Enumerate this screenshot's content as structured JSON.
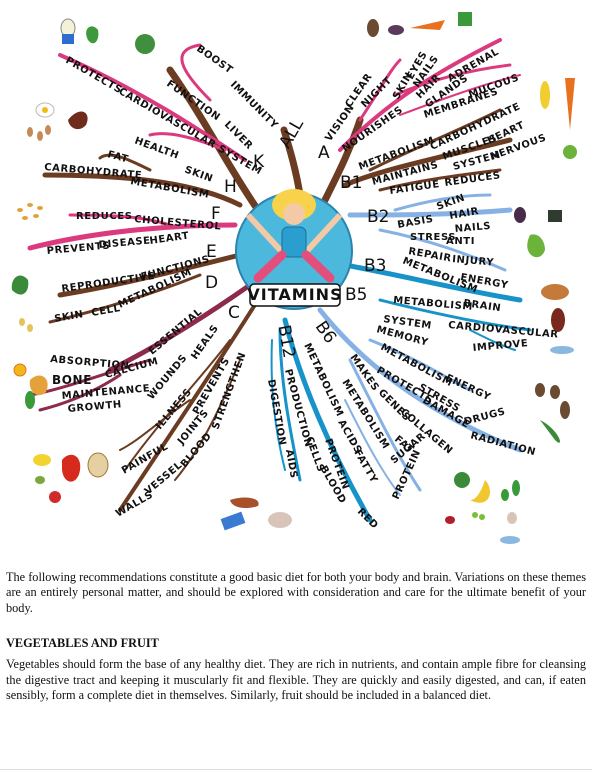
{
  "mindmap": {
    "center": "VITAMINS",
    "vitamins": {
      "a": "A",
      "b1": "B1",
      "b2": "B2",
      "b3": "B3",
      "b5": "B5",
      "b6": "B6",
      "b12": "B12",
      "c": "C",
      "d": "D",
      "e": "E",
      "f": "F",
      "h": "H",
      "k": "K",
      "all": "ALL"
    },
    "words": {
      "boost": "BOOST",
      "immunity": "IMMUNITY",
      "function": "FUNCTION",
      "liver": "LIVER",
      "protects": "PROTECTS",
      "cardiovascular_system": "CARDIOVASCULAR SYSTEM",
      "health": "HEALTH",
      "skin_k": "SKIN",
      "fat": "FAT",
      "carbohydrate_h": "CARBOHYDRATE",
      "metabolism_h": "METABOLISM",
      "vision": "VISION",
      "clear": "CLEAR",
      "night": "NIGHT",
      "nourishes": "NOURISHES",
      "skin_a": "SKIN",
      "eyes": "EYES",
      "nails_a": "NAILS",
      "hair_a": "HAIR",
      "glands": "GLANDS",
      "adrenal": "ADRENAL",
      "membranes": "MEMBRANES",
      "mucous": "MUCOUS",
      "metabolism_b1": "METABOLISM",
      "carbohydrate_b1": "CARBOHYDRATE",
      "maintains": "MAINTAINS",
      "muscles": "MUSCLES",
      "heart_b1": "HEART",
      "system_b1": "SYSTEM",
      "nervous": "NERVOUS",
      "fatigue": "FATIGUE",
      "reduces_b1": "REDUCES",
      "basis": "BASIS",
      "skin_b2": "SKIN",
      "hair_b2": "HAIR",
      "nails_b2": "NAILS",
      "stress_b2": "STRESS",
      "anti": "ANTI",
      "repair": "REPAIR",
      "injury": "INJURY",
      "metabolism_b2": "METABOLISM",
      "energy_b2": "ENERGY",
      "metabolism_b5": "METABOLISM",
      "brain": "BRAIN",
      "system_b5": "SYSTEM",
      "cardiovascular_b5": "CARDIOVASCULAR",
      "improve": "IMPROVE",
      "memory": "MEMORY",
      "metabolism_b6": "METABOLISM",
      "energy_b6": "ENERGY",
      "protects_b6": "PROTECTS",
      "stress_b6": "STRESS",
      "damage": "DAMAGE",
      "drugs": "DRUGS",
      "radiation": "RADIATION",
      "makes": "MAKES",
      "genes": "GENES",
      "collagen": "COLLAGEN",
      "metabolism_fat": "METABOLISM",
      "fat_b6": "FAT",
      "sugar": "SUGAR",
      "protein_b6": "PROTEIN",
      "metabolism_b12": "METABOLISM",
      "acids": "ACIDS",
      "fatty": "FATTY",
      "protein_b12": "PROTEIN",
      "production": "PRODUCTION",
      "cells": "CELLS",
      "blood_b12": "BLOOD",
      "red": "RED",
      "digestion": "DIGESTION",
      "aids": "AIDS",
      "reduces_f": "REDUCES",
      "cholesterol": "CHOLESTEROL",
      "prevents_f": "PREVENTS",
      "disease": "DISEASE",
      "heart_f": "HEART",
      "reproductive": "REPRODUCTIVE",
      "functions": "FUNCTIONS",
      "skin_e": "SKIN",
      "cell": "CELL",
      "metabolism_e": "METABOLISM",
      "absorption": "ABSORPTION",
      "calcium": "CALCIUM",
      "essential": "ESSENTIAL",
      "bone": "BONE",
      "maintenance": "MAINTENANCE",
      "growth": "GROWTH",
      "heals": "HEALS",
      "wounds": "WOUNDS",
      "illness": "ILLNESS",
      "prevents_c": "PREVENTS",
      "joints": "JOINTS",
      "strengthen": "STRENGTHEN",
      "painful": "PAINFUL",
      "walls": "WALLS",
      "vessel": "VESSEL",
      "blood_c": "BLOOD"
    }
  },
  "text": {
    "intro": "The following recommendations constitute a good basic diet for both your body and brain. Variations on these themes are an entirely personal matter, and should be explored with consideration and care for the ultimate benefit of your body.",
    "heading": "VEGETABLES AND FRUIT",
    "body": "Vegetables should form the base of any healthy diet. They are rich in nutrients, and contain ample fibre for cleansing the digestive tract and keeping it muscularly fit and flexible. They are quickly and easily digested, and can, if eaten sensibly, form a complete diet in themselves. Similarly, fruit should be included in a balanced diet."
  },
  "colors": {
    "brown": "#6b3b22",
    "pink": "#dc3a7e",
    "blue": "#1793c9",
    "lightblue": "#86b1e4",
    "maroon": "#8e2a4c",
    "orb": "#4bb8dc"
  }
}
